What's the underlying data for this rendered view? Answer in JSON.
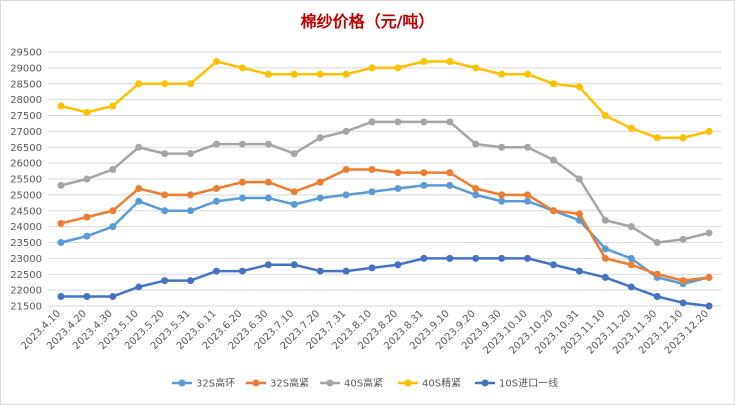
{
  "chart_data": {
    "type": "line",
    "title": "棉纱价格（元/吨）",
    "xlabel": "",
    "ylabel": "",
    "ylim": [
      21500,
      29500
    ],
    "ytick_step": 500,
    "grid": true,
    "legend_position": "bottom",
    "categories": [
      "2023.4.10",
      "2023.4.20",
      "2023.4.30",
      "2023.5.10",
      "2023.5.20",
      "2023.5.31",
      "2023.6.11",
      "2023.6.20",
      "2023.6.30",
      "2023.7.10",
      "2023.7.20",
      "2023.7.31",
      "2023.8.10",
      "2023.8.20",
      "2023.8.31",
      "2023.9.10",
      "2023.9.20",
      "2023.9.30",
      "2023.10.10",
      "2023.10.20",
      "2023.10.31",
      "2023.11.10",
      "2023.11.20",
      "2023.11.30",
      "2023.12.10",
      "2023.12.20"
    ],
    "series": [
      {
        "name": "32S高环",
        "color": "#5b9bd5",
        "values": [
          23500,
          23700,
          24000,
          24800,
          24500,
          24500,
          24800,
          24900,
          24900,
          24700,
          24900,
          25000,
          25100,
          25200,
          25300,
          25300,
          25000,
          24800,
          24800,
          24500,
          24200,
          23300,
          23000,
          22400,
          22200,
          22400
        ]
      },
      {
        "name": "32S高紧",
        "color": "#ed7d31",
        "values": [
          24100,
          24300,
          24500,
          25200,
          25000,
          25000,
          25200,
          25400,
          25400,
          25100,
          25400,
          25800,
          25800,
          25700,
          25700,
          25700,
          25200,
          25000,
          25000,
          24500,
          24400,
          23000,
          22800,
          22500,
          22300,
          22400
        ]
      },
      {
        "name": "40S高紧",
        "color": "#a5a5a5",
        "values": [
          25300,
          25500,
          25800,
          26500,
          26300,
          26300,
          26600,
          26600,
          26600,
          26300,
          26800,
          27000,
          27300,
          27300,
          27300,
          27300,
          26600,
          26500,
          26500,
          26100,
          25500,
          24200,
          24000,
          23500,
          23600,
          23800
        ]
      },
      {
        "name": "40S精紧",
        "color": "#ffc000",
        "values": [
          27800,
          27600,
          27800,
          28500,
          28500,
          28500,
          29200,
          29000,
          28800,
          28800,
          28800,
          28800,
          29000,
          29000,
          29200,
          29200,
          29000,
          28800,
          28800,
          28500,
          28400,
          27500,
          27100,
          26800,
          26800,
          27000
        ]
      },
      {
        "name": "10S进口一线",
        "color": "#4472c4",
        "values": [
          21800,
          21800,
          21800,
          22100,
          22300,
          22300,
          22600,
          22600,
          22800,
          22800,
          22600,
          22600,
          22700,
          22800,
          23000,
          23000,
          23000,
          23000,
          23000,
          22800,
          22600,
          22400,
          22100,
          21800,
          21600,
          21500
        ]
      }
    ]
  }
}
